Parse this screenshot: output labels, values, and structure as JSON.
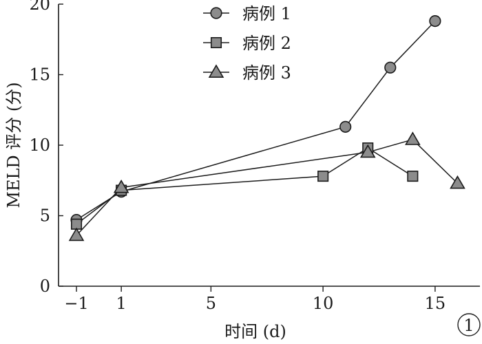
{
  "chart_data": {
    "type": "line",
    "title": "",
    "xlabel": "时间 (d)",
    "ylabel": "MELD 评分 (分)",
    "xlim": [
      -1.8,
      17
    ],
    "ylim": [
      0,
      20
    ],
    "x_ticks": [
      -1,
      1,
      5,
      10,
      15
    ],
    "x_tick_labels": [
      "−1",
      "1",
      "5",
      "10",
      "15"
    ],
    "y_ticks": [
      0,
      5,
      10,
      15,
      20
    ],
    "y_tick_labels": [
      "0",
      "5",
      "10",
      "15",
      "20"
    ],
    "grid": false,
    "legend_position": "top-center",
    "panel_label": "1",
    "series": [
      {
        "name": "病例 1",
        "marker": "circle",
        "x": [
          -1,
          1,
          11,
          13,
          15
        ],
        "y": [
          4.7,
          6.7,
          11.3,
          15.5,
          18.8
        ]
      },
      {
        "name": "病例 2",
        "marker": "square",
        "x": [
          -1,
          1,
          10,
          12,
          14
        ],
        "y": [
          4.4,
          6.8,
          7.8,
          9.8,
          7.8
        ]
      },
      {
        "name": "病例 3",
        "marker": "triangle",
        "x": [
          -1,
          1,
          12,
          14,
          16
        ],
        "y": [
          3.6,
          7.0,
          9.5,
          10.4,
          7.3
        ]
      }
    ],
    "colors": {
      "line": "#1a1a1a",
      "marker_fill": "#8c8c8c",
      "marker_stroke": "#1a1a1a"
    }
  }
}
